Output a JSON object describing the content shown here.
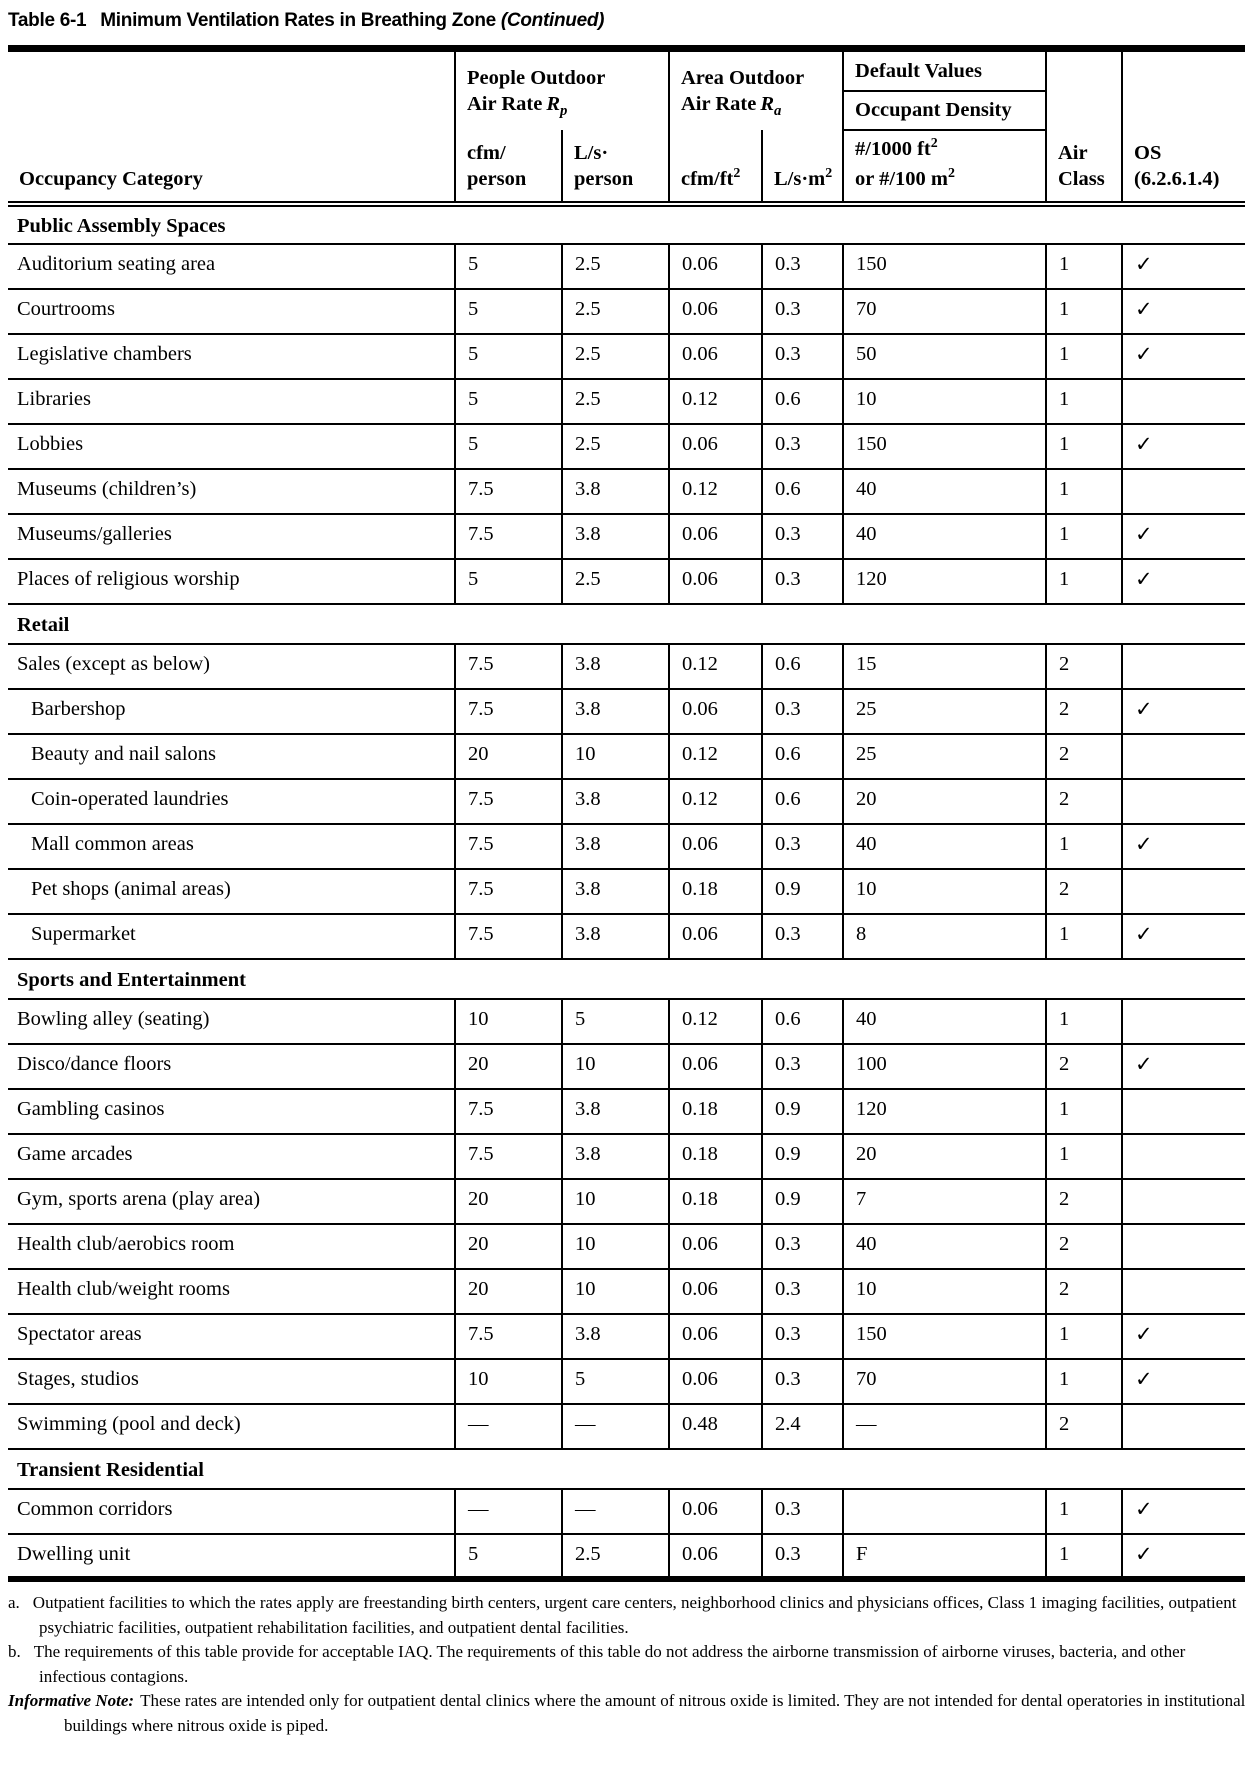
{
  "title": {
    "prefix": "Table 6-1",
    "main": "Minimum Ventilation Rates in Breathing Zone",
    "continued": "(Continued)"
  },
  "header": {
    "occupancy_category": "Occupancy Category",
    "people": {
      "line1": "People Outdoor",
      "line2": "Air Rate",
      "symbol": "R",
      "symbol_sub": "p"
    },
    "area": {
      "line1": "Area Outdoor",
      "line2": "Air Rate",
      "symbol": "R",
      "symbol_sub": "a"
    },
    "default_values": "Default Values",
    "occupant_density": "Occupant Density",
    "cfm_person": {
      "line1": "cfm/",
      "line2": "person"
    },
    "ls_person": {
      "line1": "L/s·",
      "line2": "person"
    },
    "cfm_ft2": {
      "base": "cfm/ft"
    },
    "ls_m2": {
      "base": "L/s·m"
    },
    "density": {
      "line1": "#/1000 ft",
      "line2": "or #/100 m"
    },
    "air_class": {
      "line1": "Air",
      "line2": "Class"
    },
    "os": {
      "line1": "OS",
      "line2": "(6.2.6.1.4)"
    },
    "sup2": "2"
  },
  "table": {
    "check_glyph": "✓",
    "dash_glyph": "—",
    "sections": [
      {
        "name": "Public Assembly Spaces",
        "rows": [
          {
            "category": "Auditorium seating area",
            "indent": false,
            "cfm_person": "5",
            "ls_person": "2.5",
            "cfm_ft2": "0.06",
            "ls_m2": "0.3",
            "density": "150",
            "air_class": "1",
            "os": true
          },
          {
            "category": "Courtrooms",
            "indent": false,
            "cfm_person": "5",
            "ls_person": "2.5",
            "cfm_ft2": "0.06",
            "ls_m2": "0.3",
            "density": "70",
            "air_class": "1",
            "os": true
          },
          {
            "category": "Legislative chambers",
            "indent": false,
            "cfm_person": "5",
            "ls_person": "2.5",
            "cfm_ft2": "0.06",
            "ls_m2": "0.3",
            "density": "50",
            "air_class": "1",
            "os": true
          },
          {
            "category": "Libraries",
            "indent": false,
            "cfm_person": "5",
            "ls_person": "2.5",
            "cfm_ft2": "0.12",
            "ls_m2": "0.6",
            "density": "10",
            "air_class": "1",
            "os": false
          },
          {
            "category": "Lobbies",
            "indent": false,
            "cfm_person": "5",
            "ls_person": "2.5",
            "cfm_ft2": "0.06",
            "ls_m2": "0.3",
            "density": "150",
            "air_class": "1",
            "os": true
          },
          {
            "category": "Museums (children’s)",
            "indent": false,
            "cfm_person": "7.5",
            "ls_person": "3.8",
            "cfm_ft2": "0.12",
            "ls_m2": "0.6",
            "density": "40",
            "air_class": "1",
            "os": false
          },
          {
            "category": "Museums/galleries",
            "indent": false,
            "cfm_person": "7.5",
            "ls_person": "3.8",
            "cfm_ft2": "0.06",
            "ls_m2": "0.3",
            "density": "40",
            "air_class": "1",
            "os": true
          },
          {
            "category": "Places of religious worship",
            "indent": false,
            "cfm_person": "5",
            "ls_person": "2.5",
            "cfm_ft2": "0.06",
            "ls_m2": "0.3",
            "density": "120",
            "air_class": "1",
            "os": true
          }
        ]
      },
      {
        "name": "Retail",
        "rows": [
          {
            "category": "Sales (except as below)",
            "indent": false,
            "cfm_person": "7.5",
            "ls_person": "3.8",
            "cfm_ft2": "0.12",
            "ls_m2": "0.6",
            "density": "15",
            "air_class": "2",
            "os": false
          },
          {
            "category": "Barbershop",
            "indent": true,
            "cfm_person": "7.5",
            "ls_person": "3.8",
            "cfm_ft2": "0.06",
            "ls_m2": "0.3",
            "density": "25",
            "air_class": "2",
            "os": true
          },
          {
            "category": "Beauty and nail salons",
            "indent": true,
            "cfm_person": "20",
            "ls_person": "10",
            "cfm_ft2": "0.12",
            "ls_m2": "0.6",
            "density": "25",
            "air_class": "2",
            "os": false
          },
          {
            "category": "Coin-operated laundries",
            "indent": true,
            "cfm_person": "7.5",
            "ls_person": "3.8",
            "cfm_ft2": "0.12",
            "ls_m2": "0.6",
            "density": "20",
            "air_class": "2",
            "os": false
          },
          {
            "category": "Mall common areas",
            "indent": true,
            "cfm_person": "7.5",
            "ls_person": "3.8",
            "cfm_ft2": "0.06",
            "ls_m2": "0.3",
            "density": "40",
            "air_class": "1",
            "os": true
          },
          {
            "category": "Pet shops (animal areas)",
            "indent": true,
            "cfm_person": "7.5",
            "ls_person": "3.8",
            "cfm_ft2": "0.18",
            "ls_m2": "0.9",
            "density": "10",
            "air_class": "2",
            "os": false
          },
          {
            "category": "Supermarket",
            "indent": true,
            "cfm_person": "7.5",
            "ls_person": "3.8",
            "cfm_ft2": "0.06",
            "ls_m2": "0.3",
            "density": "8",
            "air_class": "1",
            "os": true
          }
        ]
      },
      {
        "name": "Sports and Entertainment",
        "rows": [
          {
            "category": "Bowling alley (seating)",
            "indent": false,
            "cfm_person": "10",
            "ls_person": "5",
            "cfm_ft2": "0.12",
            "ls_m2": "0.6",
            "density": "40",
            "air_class": "1",
            "os": false
          },
          {
            "category": "Disco/dance floors",
            "indent": false,
            "cfm_person": "20",
            "ls_person": "10",
            "cfm_ft2": "0.06",
            "ls_m2": "0.3",
            "density": "100",
            "air_class": "2",
            "os": true
          },
          {
            "category": "Gambling casinos",
            "indent": false,
            "cfm_person": "7.5",
            "ls_person": "3.8",
            "cfm_ft2": "0.18",
            "ls_m2": "0.9",
            "density": "120",
            "air_class": "1",
            "os": false
          },
          {
            "category": "Game arcades",
            "indent": false,
            "cfm_person": "7.5",
            "ls_person": "3.8",
            "cfm_ft2": "0.18",
            "ls_m2": "0.9",
            "density": "20",
            "air_class": "1",
            "os": false
          },
          {
            "category": "Gym, sports arena (play area)",
            "indent": false,
            "cfm_person": "20",
            "ls_person": "10",
            "cfm_ft2": "0.18",
            "ls_m2": "0.9",
            "density": "7",
            "air_class": "2",
            "os": false
          },
          {
            "category": "Health club/aerobics room",
            "indent": false,
            "cfm_person": "20",
            "ls_person": "10",
            "cfm_ft2": "0.06",
            "ls_m2": "0.3",
            "density": "40",
            "air_class": "2",
            "os": false
          },
          {
            "category": "Health club/weight rooms",
            "indent": false,
            "cfm_person": "20",
            "ls_person": "10",
            "cfm_ft2": "0.06",
            "ls_m2": "0.3",
            "density": "10",
            "air_class": "2",
            "os": false
          },
          {
            "category": "Spectator areas",
            "indent": false,
            "cfm_person": "7.5",
            "ls_person": "3.8",
            "cfm_ft2": "0.06",
            "ls_m2": "0.3",
            "density": "150",
            "air_class": "1",
            "os": true
          },
          {
            "category": "Stages, studios",
            "indent": false,
            "cfm_person": "10",
            "ls_person": "5",
            "cfm_ft2": "0.06",
            "ls_m2": "0.3",
            "density": "70",
            "air_class": "1",
            "os": true
          },
          {
            "category": "Swimming (pool and deck)",
            "indent": false,
            "cfm_person": "—",
            "ls_person": "—",
            "cfm_ft2": "0.48",
            "ls_m2": "2.4",
            "density": "—",
            "air_class": "2",
            "os": false
          }
        ]
      },
      {
        "name": "Transient Residential",
        "rows": [
          {
            "category": "Common corridors",
            "indent": false,
            "cfm_person": "—",
            "ls_person": "—",
            "cfm_ft2": "0.06",
            "ls_m2": "0.3",
            "density": "",
            "air_class": "1",
            "os": true
          },
          {
            "category": "Dwelling unit",
            "indent": false,
            "cfm_person": "5",
            "ls_person": "2.5",
            "cfm_ft2": "0.06",
            "ls_m2": "0.3",
            "density": "F",
            "air_class": "1",
            "os": true
          }
        ]
      }
    ]
  },
  "footnotes": {
    "a": {
      "marker": "a.",
      "text": "Outpatient facilities to which the rates apply are freestanding birth centers, urgent care centers, neighborhood clinics and physicians offices, Class 1 imaging facilities, outpatient psychiatric facilities, outpatient rehabilitation facilities, and outpatient dental facilities."
    },
    "b": {
      "marker": "b.",
      "text": "The requirements of this table provide for acceptable IAQ. The requirements of this table do not address the airborne transmission of airborne viruses, bacteria, and other infectious contagions."
    },
    "informative": {
      "label": "Informative Note:",
      "text": "These rates are intended only for outpatient dental clinics where the amount of nitrous oxide is limited. They are not intended for dental operatories in institutional buildings where nitrous oxide is piped."
    }
  }
}
